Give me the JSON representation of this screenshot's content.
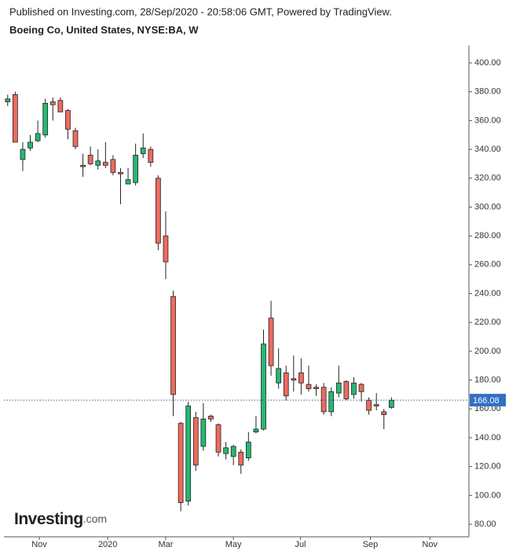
{
  "header": {
    "published": "Published on Investing.com, 28/Sep/2020 - 20:58:06 GMT, Powered by TradingView.",
    "symbol": "Boeing Co, United States, NYSE:BA, W"
  },
  "logo": {
    "brand": "Investing",
    "suffix": ".com"
  },
  "chart_data": {
    "type": "candlestick",
    "x": [
      0,
      1,
      2,
      3,
      4,
      5,
      6,
      7,
      8,
      9,
      10,
      11,
      12,
      13,
      14,
      15,
      16,
      17,
      18,
      19,
      20,
      21,
      22,
      23,
      24,
      25,
      26,
      27,
      28,
      29,
      30,
      31,
      32,
      33,
      34,
      35,
      36,
      37,
      38,
      39,
      40,
      41,
      42,
      43,
      44,
      45,
      46,
      47,
      48,
      49,
      50,
      51
    ],
    "open": [
      373,
      378,
      333,
      341,
      346,
      350,
      373,
      374,
      367,
      353,
      329,
      336,
      329,
      331,
      333,
      324,
      316,
      317,
      337,
      340,
      320,
      280,
      238,
      150,
      96,
      154,
      134,
      155,
      149,
      129,
      127,
      130,
      126,
      144,
      146,
      223,
      178,
      185,
      181,
      185,
      177,
      175,
      175,
      158,
      171,
      179,
      170,
      177,
      166,
      163,
      158,
      161
    ],
    "high": [
      378,
      380,
      345,
      350,
      360,
      375,
      376,
      376,
      368,
      355,
      337,
      342,
      340,
      345,
      336,
      327,
      327,
      344,
      351,
      342,
      322,
      297,
      242,
      151,
      165,
      158,
      164,
      156,
      150,
      137,
      135,
      132,
      144,
      155,
      215,
      235,
      202,
      190,
      197,
      195,
      190,
      177,
      178,
      175,
      190,
      180,
      182,
      178,
      168,
      171,
      160,
      168
    ],
    "low": [
      370,
      345,
      325,
      339,
      345,
      348,
      360,
      366,
      347,
      340,
      321,
      329,
      326,
      327,
      322,
      302,
      316,
      315,
      334,
      328,
      270,
      250,
      155,
      89,
      93,
      117,
      131,
      151,
      127,
      125,
      121,
      115,
      124,
      143,
      145,
      183,
      174,
      166,
      172,
      170,
      172,
      169,
      156,
      155,
      168,
      166,
      167,
      165,
      156,
      159,
      146,
      160
    ],
    "close": [
      375,
      345,
      340,
      345,
      351,
      372,
      371,
      366,
      354,
      342,
      328,
      330,
      332,
      329,
      324,
      323,
      319,
      336,
      341,
      331,
      275,
      262,
      170,
      95,
      162,
      121,
      153,
      153,
      130,
      133,
      134,
      121,
      137,
      146,
      205,
      190,
      188,
      169,
      180,
      178,
      174,
      174,
      158,
      172,
      178,
      167,
      178,
      172,
      159,
      162,
      156,
      166
    ],
    "up_color": "#26b873",
    "down_color": "#ef6a5e",
    "last_price": 166.08,
    "xlim": [
      -0.5,
      61.3
    ],
    "xticks": [
      {
        "value": 4.2,
        "label": "Nov"
      },
      {
        "value": 13.3,
        "label": "2020"
      },
      {
        "value": 21.0,
        "label": "Mar"
      },
      {
        "value": 30.0,
        "label": "May"
      },
      {
        "value": 38.9,
        "label": "Jul"
      },
      {
        "value": 48.2,
        "label": "Sep"
      },
      {
        "value": 56.1,
        "label": "Nov"
      }
    ],
    "ylim": [
      71.3,
      412
    ],
    "yticks": [
      {
        "value": 80,
        "label": "80.00"
      },
      {
        "value": 100,
        "label": "100.00"
      },
      {
        "value": 120,
        "label": "120.00"
      },
      {
        "value": 140,
        "label": "140.00"
      },
      {
        "value": 160,
        "label": "160.00"
      },
      {
        "value": 180,
        "label": "180.00"
      },
      {
        "value": 200,
        "label": "200.00"
      },
      {
        "value": 220,
        "label": "220.00"
      },
      {
        "value": 240,
        "label": "240.00"
      },
      {
        "value": 260,
        "label": "260.00"
      },
      {
        "value": 280,
        "label": "280.00"
      },
      {
        "value": 300,
        "label": "300.00"
      },
      {
        "value": 320,
        "label": "320.00"
      },
      {
        "value": 340,
        "label": "340.00"
      },
      {
        "value": 360,
        "label": "360.00"
      },
      {
        "value": 380,
        "label": "380.00"
      },
      {
        "value": 400,
        "label": "400.00"
      }
    ]
  }
}
